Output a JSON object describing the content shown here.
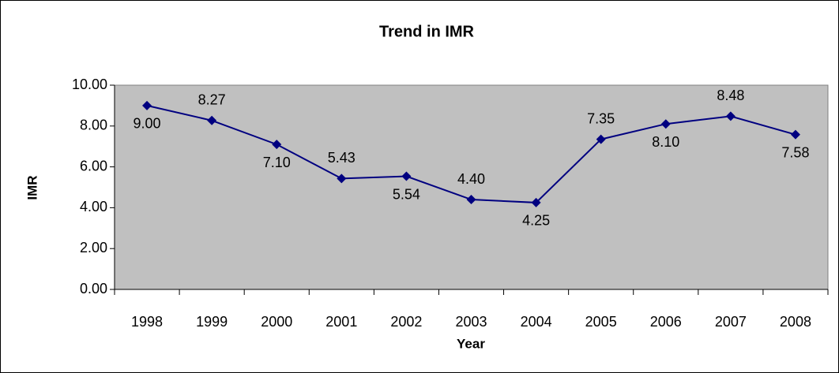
{
  "chart_data": {
    "type": "line",
    "title": "Trend in IMR",
    "xlabel": "Year",
    "ylabel": "IMR",
    "categories": [
      "1998",
      "1999",
      "2000",
      "2001",
      "2002",
      "2003",
      "2004",
      "2005",
      "2006",
      "2007",
      "2008"
    ],
    "series": [
      {
        "name": "IMR",
        "color": "#000080",
        "values": [
          9,
          8.27,
          7.1,
          5.43,
          5.54,
          4.4,
          4.25,
          7.35,
          8.1,
          8.48,
          7.58
        ],
        "value_labels": [
          "9.00",
          "8.27",
          "7.10",
          "5.43",
          "5.54",
          "4.40",
          "4.25",
          "7.35",
          "8.10",
          "8.48",
          "7.58"
        ]
      }
    ],
    "ylim": [
      0,
      10
    ],
    "yticks": [
      {
        "value": 0,
        "label": "0.00"
      },
      {
        "value": 2,
        "label": "2.00"
      },
      {
        "value": 4,
        "label": "4.00"
      },
      {
        "value": 6,
        "label": "6.00"
      },
      {
        "value": 8,
        "label": "8.00"
      },
      {
        "value": 10,
        "label": "10.00"
      }
    ],
    "plot_background": "#c0c0c0"
  }
}
